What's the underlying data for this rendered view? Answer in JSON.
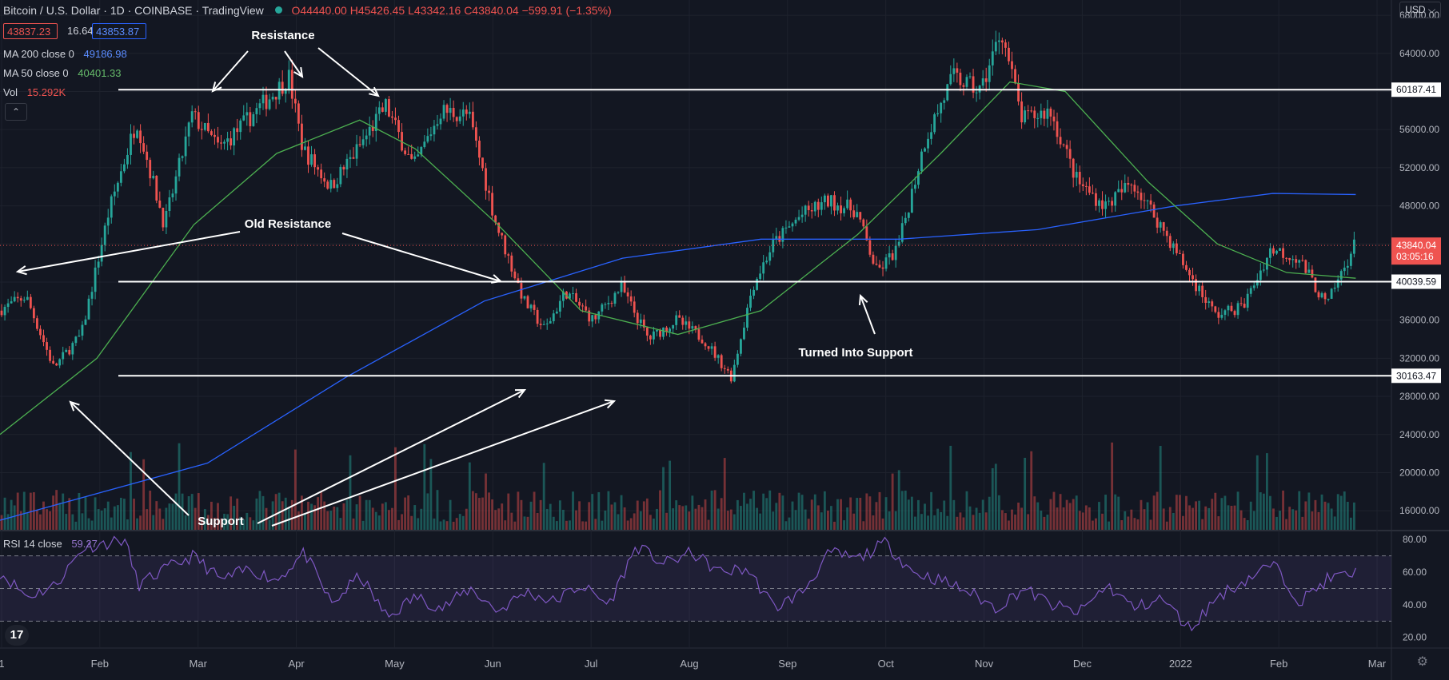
{
  "header": {
    "symbol": "Bitcoin / U.S. Dollar · 1D · COINBASE · TradingView",
    "open": "O44440.00",
    "high": "H45426.45",
    "low": "L43342.16",
    "close": "C43840.04",
    "change": "−599.91 (−1.35%)",
    "bid": "43837.23",
    "spread": "16.64",
    "ask": "43853.87",
    "currency": "USD"
  },
  "indicators": {
    "ma200": {
      "label": "MA 200 close 0",
      "value": "49186.98",
      "color": "#2962ff"
    },
    "ma50": {
      "label": "MA 50 close 0",
      "value": "40401.33",
      "color": "#4caf50"
    },
    "vol": {
      "label": "Vol",
      "value": "15.292K"
    },
    "rsi": {
      "label": "RSI 14 close",
      "value": "59.27",
      "color": "#7e57c2"
    }
  },
  "chart_data": {
    "type": "candlestick",
    "symbol": "BTCUSD",
    "timeframe": "1D",
    "x_ticks": [
      "1",
      "Feb",
      "Mar",
      "Apr",
      "May",
      "Jun",
      "Jul",
      "Aug",
      "Sep",
      "Oct",
      "Nov",
      "Dec",
      "2022",
      "Feb",
      "Mar"
    ],
    "y_ticks": [
      16000,
      20000,
      24000,
      28000,
      32000,
      36000,
      40000,
      44000,
      48000,
      52000,
      56000,
      60000,
      64000,
      68000
    ],
    "y_tick_labels": [
      "16000.00",
      "20000.00",
      "24000.00",
      "28000.00",
      "32000.00",
      "36000.00",
      "40000.00",
      "44000.00",
      "48000.00",
      "52000.00",
      "56000.00",
      "60000.00",
      "64000.00",
      "68000.00"
    ],
    "ylim": [
      14000,
      69600
    ],
    "close_path": [
      {
        "t": 0,
        "v": 37000
      },
      {
        "t": 0.02,
        "v": 38500
      },
      {
        "t": 0.04,
        "v": 31000
      },
      {
        "t": 0.06,
        "v": 34500
      },
      {
        "t": 0.08,
        "v": 47500
      },
      {
        "t": 0.1,
        "v": 57000
      },
      {
        "t": 0.12,
        "v": 46000
      },
      {
        "t": 0.14,
        "v": 57500
      },
      {
        "t": 0.16,
        "v": 54000
      },
      {
        "t": 0.19,
        "v": 58500
      },
      {
        "t": 0.21,
        "v": 61500
      },
      {
        "t": 0.22,
        "v": 54000
      },
      {
        "t": 0.24,
        "v": 50000
      },
      {
        "t": 0.26,
        "v": 54000
      },
      {
        "t": 0.28,
        "v": 58500
      },
      {
        "t": 0.3,
        "v": 52000
      },
      {
        "t": 0.32,
        "v": 58000
      },
      {
        "t": 0.34,
        "v": 57500
      },
      {
        "t": 0.36,
        "v": 46000
      },
      {
        "t": 0.38,
        "v": 38000
      },
      {
        "t": 0.395,
        "v": 35000
      },
      {
        "t": 0.41,
        "v": 39000
      },
      {
        "t": 0.43,
        "v": 36000
      },
      {
        "t": 0.45,
        "v": 39500
      },
      {
        "t": 0.47,
        "v": 34000
      },
      {
        "t": 0.49,
        "v": 36000
      },
      {
        "t": 0.51,
        "v": 34000
      },
      {
        "t": 0.53,
        "v": 30000
      },
      {
        "t": 0.545,
        "v": 39500
      },
      {
        "t": 0.56,
        "v": 44000
      },
      {
        "t": 0.58,
        "v": 47000
      },
      {
        "t": 0.6,
        "v": 48500
      },
      {
        "t": 0.62,
        "v": 47500
      },
      {
        "t": 0.635,
        "v": 41000
      },
      {
        "t": 0.65,
        "v": 43500
      },
      {
        "t": 0.67,
        "v": 55000
      },
      {
        "t": 0.69,
        "v": 61500
      },
      {
        "t": 0.71,
        "v": 60000
      },
      {
        "t": 0.725,
        "v": 66500
      },
      {
        "t": 0.74,
        "v": 57000
      },
      {
        "t": 0.76,
        "v": 58000
      },
      {
        "t": 0.78,
        "v": 50500
      },
      {
        "t": 0.8,
        "v": 48000
      },
      {
        "t": 0.82,
        "v": 50500
      },
      {
        "t": 0.84,
        "v": 46000
      },
      {
        "t": 0.86,
        "v": 41000
      },
      {
        "t": 0.88,
        "v": 36500
      },
      {
        "t": 0.9,
        "v": 37500
      },
      {
        "t": 0.92,
        "v": 43500
      },
      {
        "t": 0.94,
        "v": 42500
      },
      {
        "t": 0.96,
        "v": 37500
      },
      {
        "t": 0.98,
        "v": 43840
      }
    ],
    "ma200_path": [
      {
        "t": 0,
        "v": 15000
      },
      {
        "t": 0.15,
        "v": 21000
      },
      {
        "t": 0.25,
        "v": 30000
      },
      {
        "t": 0.35,
        "v": 38000
      },
      {
        "t": 0.45,
        "v": 42500
      },
      {
        "t": 0.55,
        "v": 44500
      },
      {
        "t": 0.65,
        "v": 44500
      },
      {
        "t": 0.75,
        "v": 45500
      },
      {
        "t": 0.85,
        "v": 48000
      },
      {
        "t": 0.92,
        "v": 49300
      },
      {
        "t": 0.98,
        "v": 49186.98
      }
    ],
    "ma50_path": [
      {
        "t": 0,
        "v": 24000
      },
      {
        "t": 0.07,
        "v": 32000
      },
      {
        "t": 0.14,
        "v": 46000
      },
      {
        "t": 0.2,
        "v": 53500
      },
      {
        "t": 0.26,
        "v": 57000
      },
      {
        "t": 0.3,
        "v": 54000
      },
      {
        "t": 0.36,
        "v": 46000
      },
      {
        "t": 0.42,
        "v": 37000
      },
      {
        "t": 0.49,
        "v": 34500
      },
      {
        "t": 0.55,
        "v": 37000
      },
      {
        "t": 0.62,
        "v": 45000
      },
      {
        "t": 0.68,
        "v": 53500
      },
      {
        "t": 0.73,
        "v": 61000
      },
      {
        "t": 0.77,
        "v": 60000
      },
      {
        "t": 0.83,
        "v": 50500
      },
      {
        "t": 0.88,
        "v": 44000
      },
      {
        "t": 0.93,
        "v": 41000
      },
      {
        "t": 0.98,
        "v": 40401.33
      }
    ],
    "rsi_path": [
      {
        "t": 0,
        "v": 60
      },
      {
        "t": 0.02,
        "v": 45
      },
      {
        "t": 0.04,
        "v": 52
      },
      {
        "t": 0.06,
        "v": 75
      },
      {
        "t": 0.09,
        "v": 80
      },
      {
        "t": 0.1,
        "v": 52
      },
      {
        "t": 0.12,
        "v": 62
      },
      {
        "t": 0.14,
        "v": 70
      },
      {
        "t": 0.16,
        "v": 55
      },
      {
        "t": 0.18,
        "v": 62
      },
      {
        "t": 0.2,
        "v": 55
      },
      {
        "t": 0.22,
        "v": 72
      },
      {
        "t": 0.24,
        "v": 40
      },
      {
        "t": 0.26,
        "v": 58
      },
      {
        "t": 0.28,
        "v": 32
      },
      {
        "t": 0.3,
        "v": 45
      },
      {
        "t": 0.32,
        "v": 38
      },
      {
        "t": 0.34,
        "v": 50
      },
      {
        "t": 0.36,
        "v": 36
      },
      {
        "t": 0.38,
        "v": 48
      },
      {
        "t": 0.4,
        "v": 42
      },
      {
        "t": 0.42,
        "v": 52
      },
      {
        "t": 0.44,
        "v": 40
      },
      {
        "t": 0.46,
        "v": 76
      },
      {
        "t": 0.48,
        "v": 65
      },
      {
        "t": 0.5,
        "v": 72
      },
      {
        "t": 0.52,
        "v": 60
      },
      {
        "t": 0.54,
        "v": 62
      },
      {
        "t": 0.56,
        "v": 38
      },
      {
        "t": 0.58,
        "v": 48
      },
      {
        "t": 0.6,
        "v": 72
      },
      {
        "t": 0.62,
        "v": 68
      },
      {
        "t": 0.64,
        "v": 78
      },
      {
        "t": 0.66,
        "v": 60
      },
      {
        "t": 0.68,
        "v": 55
      },
      {
        "t": 0.7,
        "v": 48
      },
      {
        "t": 0.72,
        "v": 38
      },
      {
        "t": 0.74,
        "v": 50
      },
      {
        "t": 0.76,
        "v": 40
      },
      {
        "t": 0.78,
        "v": 35
      },
      {
        "t": 0.8,
        "v": 52
      },
      {
        "t": 0.82,
        "v": 38
      },
      {
        "t": 0.84,
        "v": 44
      },
      {
        "t": 0.86,
        "v": 25
      },
      {
        "t": 0.88,
        "v": 45
      },
      {
        "t": 0.9,
        "v": 55
      },
      {
        "t": 0.92,
        "v": 65
      },
      {
        "t": 0.94,
        "v": 42
      },
      {
        "t": 0.96,
        "v": 56
      },
      {
        "t": 0.98,
        "v": 59.27
      }
    ],
    "rsi_y_ticks": [
      20,
      40,
      60,
      80
    ],
    "rsi_y_tick_labels": [
      "20.00",
      "40.00",
      "60.00",
      "80.00"
    ],
    "rsi_ylim": [
      14,
      85
    ],
    "rsi_levels": [
      30,
      50,
      70
    ],
    "horizontal_levels": [
      {
        "value": 60187.41,
        "label": "60187.41"
      },
      {
        "value": 40039.59,
        "label": "40039.59"
      },
      {
        "value": 30163.47,
        "label": "30163.47"
      }
    ],
    "last_price": {
      "value": 43840.04,
      "label": "43840.04",
      "countdown": "03:05:16"
    },
    "annotations": [
      {
        "text": "Resistance"
      },
      {
        "text": "Old Resistance"
      },
      {
        "text": "Turned Into Support"
      },
      {
        "text": "Support"
      }
    ],
    "colors": {
      "up": "#26a69a",
      "down": "#ef5350",
      "background": "#131722",
      "grid": "#1e222d"
    }
  }
}
